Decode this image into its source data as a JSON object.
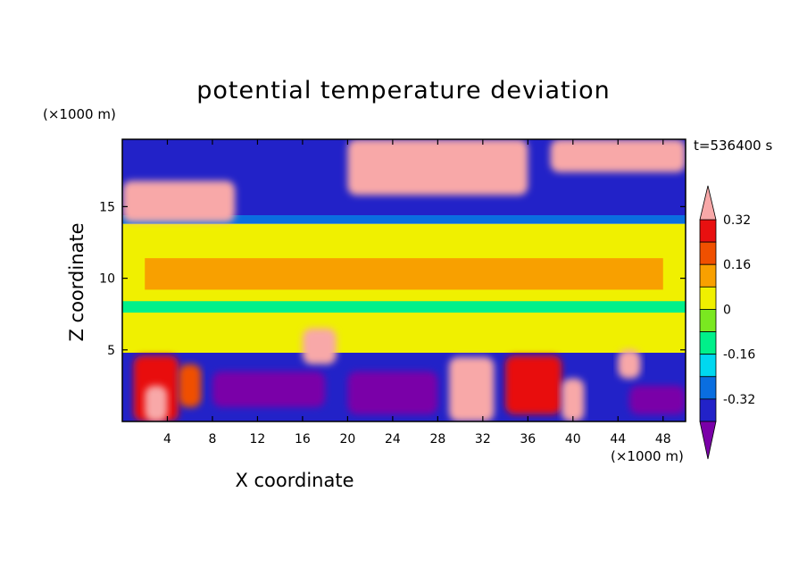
{
  "chart_data": {
    "type": "heatmap",
    "title": "potential temperature deviation",
    "xlabel": "X coordinate",
    "ylabel": "Z coordinate",
    "x_unit": "(×1000 m)",
    "y_unit": "(×1000 m)",
    "time_label": "t=536400 s",
    "xlim": [
      0,
      50
    ],
    "ylim": [
      0,
      19.7
    ],
    "x_ticks": [
      4,
      8,
      12,
      16,
      20,
      24,
      28,
      32,
      36,
      40,
      44,
      48
    ],
    "y_ticks": [
      5,
      10,
      15
    ],
    "colorbar": {
      "levels": [
        -0.4,
        -0.32,
        -0.24,
        -0.16,
        -0.08,
        0,
        0.08,
        0.16,
        0.24,
        0.32,
        0.4
      ],
      "labels": [
        "0.32",
        "0.16",
        "0",
        "-0.16",
        "-0.32"
      ],
      "label_values": [
        0.32,
        0.16,
        0,
        -0.16,
        -0.32
      ],
      "colors": [
        "#7a00a8",
        "#2222c8",
        "#0a6ee0",
        "#00d8f0",
        "#00f08a",
        "#7ae820",
        "#f0f000",
        "#f8a000",
        "#f05000",
        "#e81010",
        "#f8a8a8"
      ],
      "extend": "both"
    },
    "regions": [
      {
        "x0": 0,
        "x1": 50,
        "z0": 0,
        "z1": 4.8,
        "value": -0.36
      },
      {
        "x0": 0,
        "x1": 50,
        "z0": 4.8,
        "z1": 13.8,
        "value": 0.02
      },
      {
        "x0": 0,
        "x1": 50,
        "z0": 7.6,
        "z1": 8.4,
        "value": -0.12
      },
      {
        "x0": 2,
        "x1": 48,
        "z0": 9.2,
        "z1": 11.4,
        "value": 0.1
      },
      {
        "x0": 0,
        "x1": 50,
        "z0": 13.8,
        "z1": 14.4,
        "value": -0.32
      },
      {
        "x0": 0,
        "x1": 50,
        "z0": 14.4,
        "z1": 19.7,
        "value": -0.4
      },
      {
        "x0": 0,
        "x1": 10,
        "z0": 13.9,
        "z1": 16.8,
        "value": 0.42
      },
      {
        "x0": 20,
        "x1": 36,
        "z0": 15.8,
        "z1": 19.7,
        "value": 0.42
      },
      {
        "x0": 38,
        "x1": 50,
        "z0": 17.4,
        "z1": 19.7,
        "value": 0.42
      },
      {
        "x0": 1,
        "x1": 5,
        "z0": 0,
        "z1": 4.6,
        "value": 0.24
      },
      {
        "x0": 2,
        "x1": 4,
        "z0": 0,
        "z1": 2.5,
        "value": 0.34
      },
      {
        "x0": 5,
        "x1": 7,
        "z0": 1,
        "z1": 4.0,
        "value": 0.2
      },
      {
        "x0": 16,
        "x1": 19,
        "z0": 4.0,
        "z1": 6.5,
        "value": 0.42
      },
      {
        "x0": 29,
        "x1": 33,
        "z0": 0,
        "z1": 4.5,
        "value": 0.42
      },
      {
        "x0": 34,
        "x1": 39,
        "z0": 0.5,
        "z1": 4.6,
        "value": 0.26
      },
      {
        "x0": 39,
        "x1": 41,
        "z0": 0,
        "z1": 3.0,
        "value": 0.34
      },
      {
        "x0": 44,
        "x1": 46,
        "z0": 3.0,
        "z1": 5.0,
        "value": 0.42
      },
      {
        "x0": 8,
        "x1": 18,
        "z0": 1,
        "z1": 3.5,
        "value": -0.44
      },
      {
        "x0": 20,
        "x1": 28,
        "z0": 0.5,
        "z1": 3.5,
        "value": -0.44
      },
      {
        "x0": 45,
        "x1": 50,
        "z0": 0.5,
        "z1": 2.5,
        "value": -0.44
      }
    ]
  }
}
